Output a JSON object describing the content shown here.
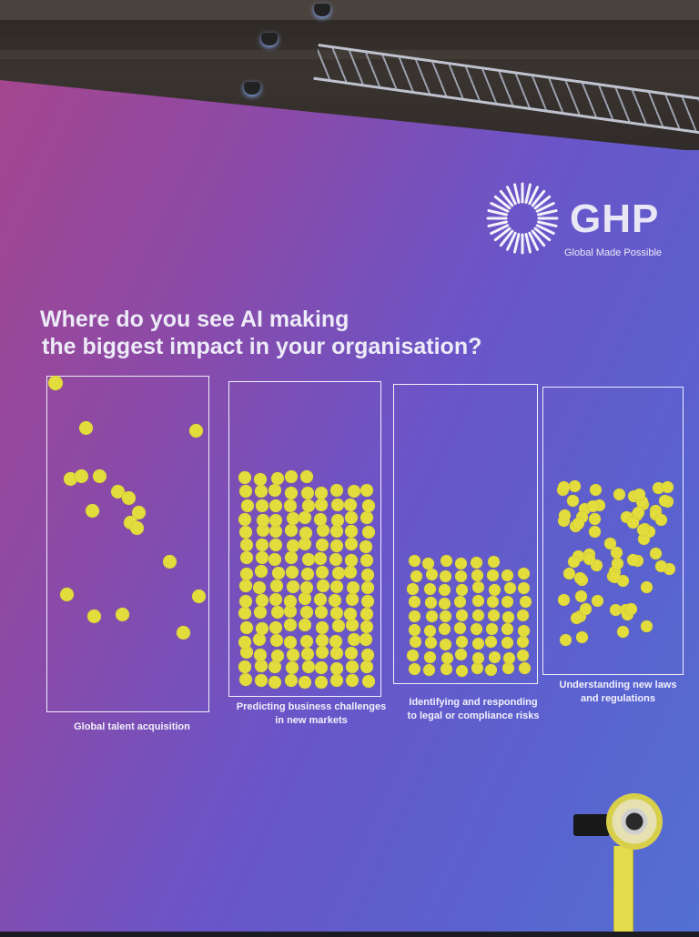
{
  "brand": {
    "name": "GHP",
    "tagline": "Global Made Possible"
  },
  "question": {
    "line1": "Where do you see AI making",
    "line2": "the biggest impact in your organisation?"
  },
  "columns": [
    {
      "label_lines": [
        "Global talent acquisition"
      ],
      "dot_count": 17
    },
    {
      "label_lines": [
        "Predicting business challenges",
        "in new markets"
      ],
      "dot_count": 140
    },
    {
      "label_lines": [
        "Identifying and responding",
        "to legal or compliance risks"
      ],
      "dot_count": 70
    },
    {
      "label_lines": [
        "Understanding new laws",
        "and regulations"
      ],
      "dot_count": 70
    }
  ],
  "colors": {
    "dot": "#e3dc3d",
    "board_start": "#a8468c",
    "board_end": "#5470d2",
    "text": "#ecebf7"
  }
}
